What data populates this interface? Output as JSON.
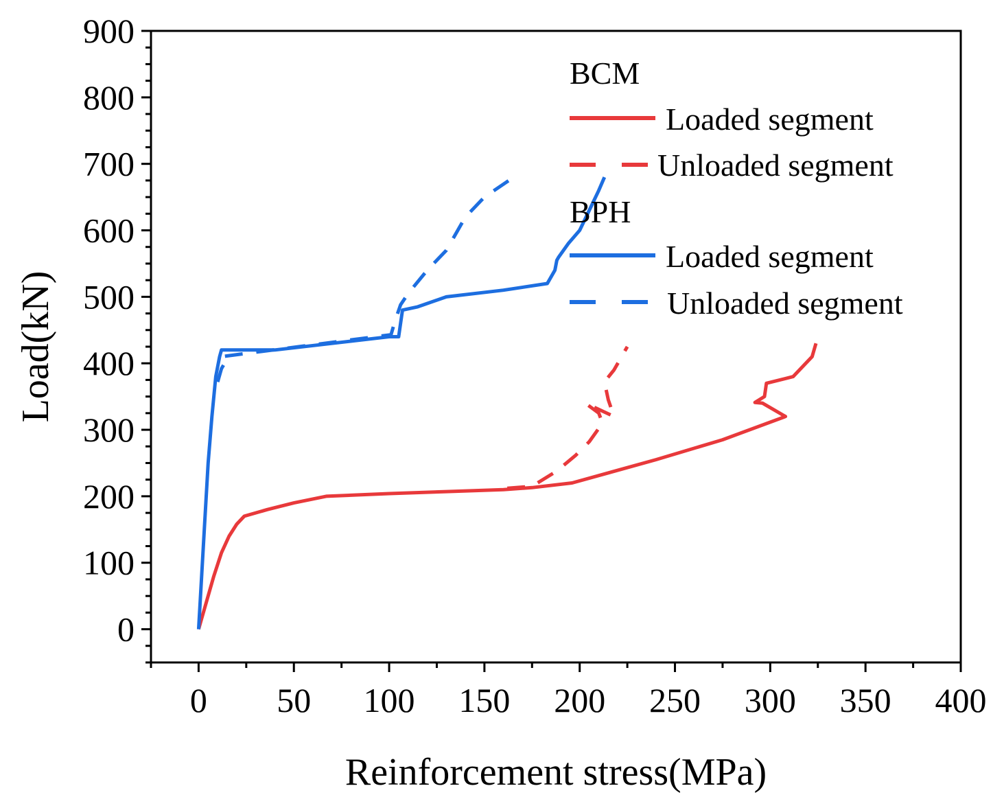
{
  "chart_data": {
    "type": "line",
    "title": "",
    "xlabel": "Reinforcement stress(MPa)",
    "ylabel": "Load(kN)",
    "xlim": [
      -25,
      400
    ],
    "ylim": [
      -50,
      900
    ],
    "xticks": [
      0,
      50,
      100,
      150,
      200,
      250,
      300,
      350,
      400
    ],
    "yticks": [
      0,
      100,
      200,
      300,
      400,
      500,
      600,
      700,
      800,
      900
    ],
    "xtick_labels": [
      "0",
      "50",
      "100",
      "150",
      "200",
      "250",
      "300",
      "350",
      "400"
    ],
    "ytick_labels": [
      "0",
      "100",
      "200",
      "300",
      "400",
      "500",
      "600",
      "700",
      "800",
      "900"
    ],
    "grid": false,
    "legend_position": "top-right",
    "legend": {
      "groups": [
        {
          "title": "BCM",
          "entries": [
            {
              "label": "Loaded segment",
              "series": "bcm_loaded"
            },
            {
              "label": "Unloaded segment",
              "series": "bcm_unloaded"
            }
          ]
        },
        {
          "title": "BPH",
          "entries": [
            {
              "label": "Loaded segment",
              "series": "bph_loaded"
            },
            {
              "label": "Unloaded segment",
              "series": "bph_unloaded"
            }
          ]
        }
      ]
    },
    "series": [
      {
        "id": "bcm_loaded",
        "name": "BCM Loaded segment",
        "color": "#e8393b",
        "dash": "solid",
        "x": [
          0,
          4,
          8,
          12,
          16,
          20,
          24,
          36,
          50,
          67,
          100,
          130,
          160,
          175,
          196,
          240,
          275,
          308,
          296,
          292,
          297,
          298,
          312,
          322,
          324
        ],
        "y": [
          0,
          40,
          80,
          115,
          140,
          158,
          170,
          180,
          190,
          200,
          204,
          207,
          210,
          213,
          220,
          255,
          285,
          320,
          340,
          341,
          350,
          370,
          380,
          410,
          430
        ]
      },
      {
        "id": "bcm_unloaded",
        "name": "BCM Unloaded segment",
        "color": "#e8393b",
        "dash": "dashed",
        "x": [
          162,
          175,
          188,
          198,
          205,
          212,
          210,
          203,
          218,
          215,
          213,
          218,
          225
        ],
        "y": [
          212,
          215,
          238,
          262,
          282,
          310,
          325,
          340,
          320,
          345,
          372,
          390,
          425
        ]
      },
      {
        "id": "bph_loaded",
        "name": "BPH Loaded segment",
        "color": "#1d6ee0",
        "dash": "solid",
        "x": [
          0,
          3,
          5,
          7,
          9,
          11,
          12,
          40,
          100,
          105,
          107,
          115,
          130,
          160,
          183,
          187,
          188,
          189,
          194,
          200,
          205,
          210,
          213
        ],
        "y": [
          0,
          150,
          250,
          320,
          380,
          410,
          420,
          420,
          440,
          440,
          480,
          485,
          500,
          510,
          520,
          540,
          555,
          560,
          580,
          600,
          630,
          660,
          680
        ]
      },
      {
        "id": "bph_unloaded",
        "name": "BPH Unloaded segment",
        "color": "#1d6ee0",
        "dash": "dashed",
        "x": [
          10,
          12,
          14,
          12,
          101,
          103,
          106,
          110,
          120,
          130,
          140,
          150,
          168
        ],
        "y": [
          372,
          392,
          402,
          410,
          443,
          463,
          488,
          505,
          540,
          570,
          620,
          650,
          685
        ]
      }
    ]
  }
}
